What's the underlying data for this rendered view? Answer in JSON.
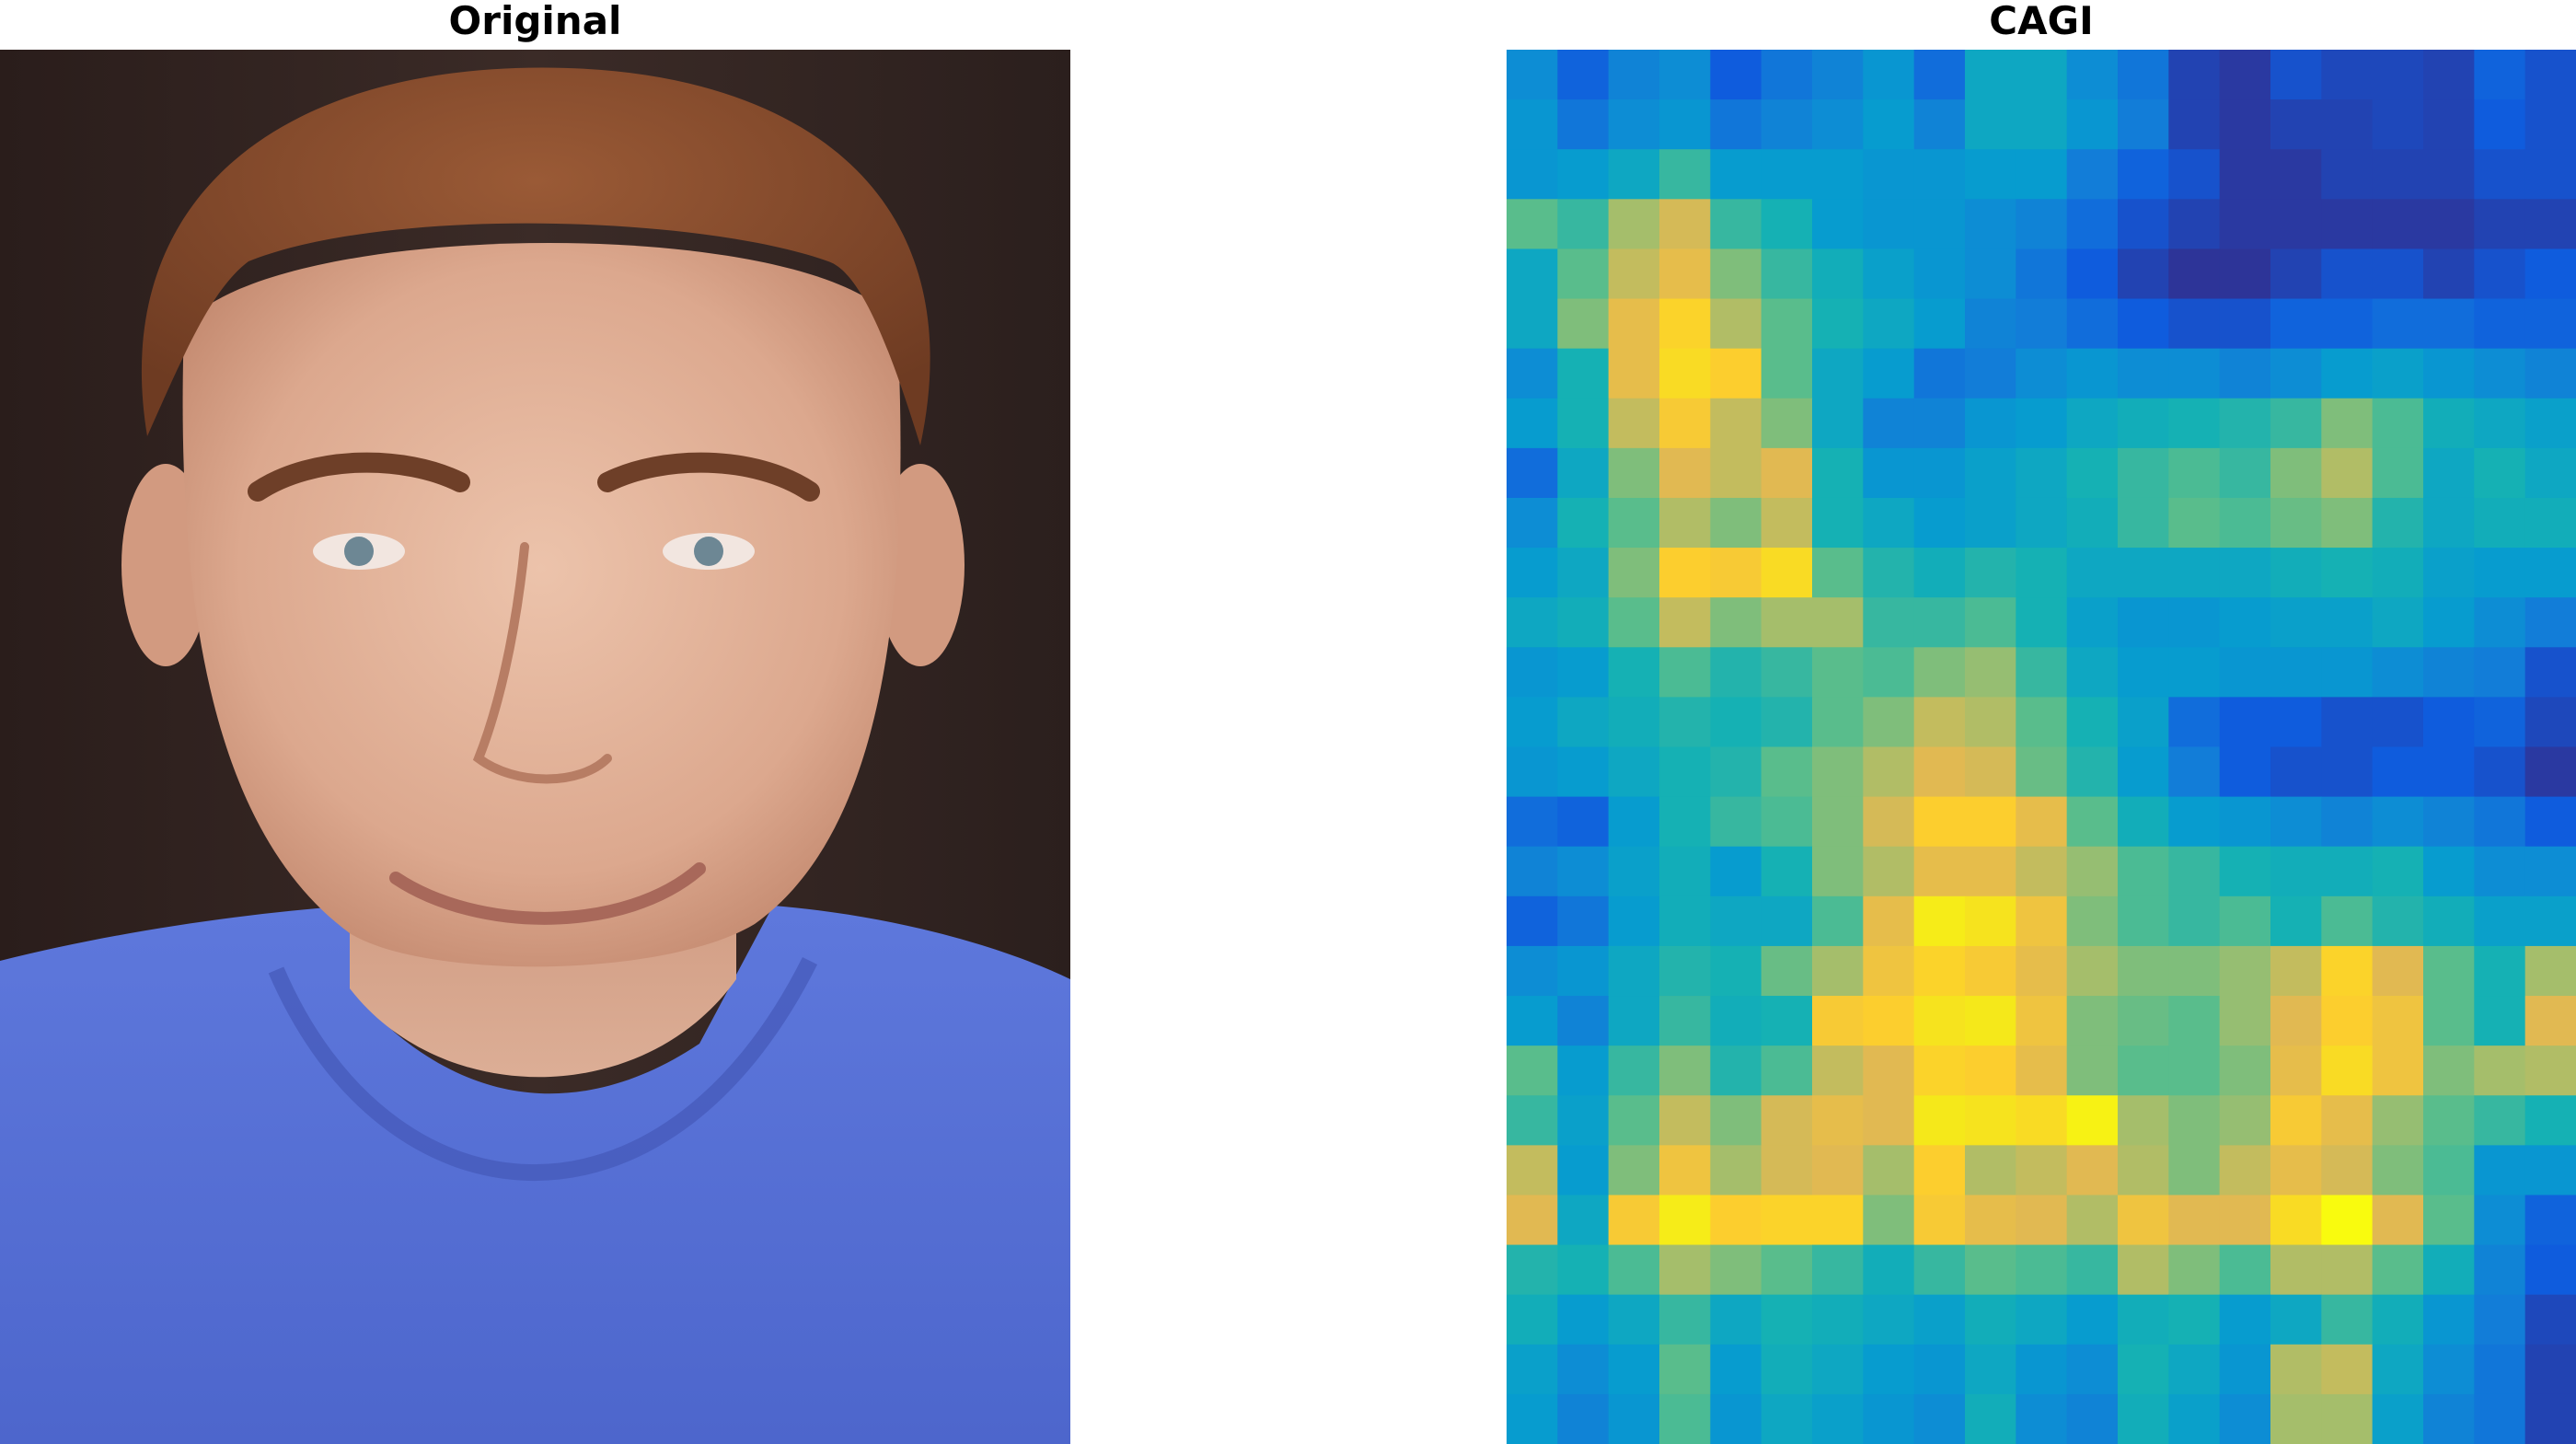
{
  "panels": {
    "left_title": "Original",
    "right_title": "CAGI"
  },
  "photo": {
    "subject": "portrait-photo",
    "colors": {
      "background": "#2f2220",
      "skin": "#e3b39a",
      "skin_shadow": "#c98d74",
      "hair": "#8a4d2c",
      "shirt": "#5a73d8",
      "shirt_shadow": "#4a5fc0"
    }
  },
  "heatmap": {
    "type": "heatmap",
    "colormap": "parula",
    "rows": 28,
    "cols": 21,
    "vmin": 0,
    "vmax": 1,
    "values": [
      [
        0.25,
        0.12,
        0.22,
        0.25,
        0.1,
        0.18,
        0.22,
        0.28,
        0.15,
        0.35,
        0.35,
        0.25,
        0.18,
        0.05,
        0.03,
        0.08,
        0.06,
        0.06,
        0.05,
        0.12,
        0.08
      ],
      [
        0.28,
        0.18,
        0.25,
        0.28,
        0.18,
        0.22,
        0.25,
        0.3,
        0.22,
        0.35,
        0.35,
        0.28,
        0.2,
        0.05,
        0.03,
        0.05,
        0.05,
        0.06,
        0.05,
        0.1,
        0.08
      ],
      [
        0.28,
        0.3,
        0.35,
        0.45,
        0.3,
        0.3,
        0.3,
        0.28,
        0.28,
        0.3,
        0.3,
        0.2,
        0.12,
        0.08,
        0.03,
        0.03,
        0.05,
        0.05,
        0.05,
        0.08,
        0.08
      ],
      [
        0.5,
        0.45,
        0.6,
        0.68,
        0.45,
        0.4,
        0.3,
        0.28,
        0.28,
        0.25,
        0.22,
        0.15,
        0.08,
        0.05,
        0.03,
        0.03,
        0.03,
        0.03,
        0.03,
        0.05,
        0.05
      ],
      [
        0.35,
        0.5,
        0.65,
        0.72,
        0.55,
        0.45,
        0.38,
        0.32,
        0.28,
        0.25,
        0.18,
        0.1,
        0.05,
        0.02,
        0.02,
        0.05,
        0.08,
        0.08,
        0.05,
        0.08,
        0.1
      ],
      [
        0.35,
        0.55,
        0.72,
        0.82,
        0.62,
        0.5,
        0.4,
        0.35,
        0.3,
        0.22,
        0.2,
        0.15,
        0.1,
        0.08,
        0.08,
        0.12,
        0.12,
        0.15,
        0.15,
        0.12,
        0.12
      ],
      [
        0.25,
        0.4,
        0.72,
        0.85,
        0.8,
        0.5,
        0.35,
        0.3,
        0.18,
        0.2,
        0.25,
        0.28,
        0.25,
        0.25,
        0.22,
        0.25,
        0.3,
        0.32,
        0.28,
        0.25,
        0.22
      ],
      [
        0.3,
        0.4,
        0.65,
        0.78,
        0.65,
        0.55,
        0.35,
        0.22,
        0.22,
        0.28,
        0.3,
        0.35,
        0.38,
        0.4,
        0.42,
        0.45,
        0.55,
        0.48,
        0.38,
        0.35,
        0.32
      ],
      [
        0.15,
        0.35,
        0.55,
        0.7,
        0.65,
        0.7,
        0.4,
        0.28,
        0.28,
        0.32,
        0.35,
        0.4,
        0.45,
        0.48,
        0.45,
        0.55,
        0.62,
        0.48,
        0.35,
        0.4,
        0.35
      ],
      [
        0.25,
        0.4,
        0.5,
        0.62,
        0.55,
        0.65,
        0.4,
        0.35,
        0.3,
        0.32,
        0.35,
        0.38,
        0.45,
        0.5,
        0.48,
        0.52,
        0.55,
        0.42,
        0.35,
        0.38,
        0.38
      ],
      [
        0.3,
        0.35,
        0.55,
        0.8,
        0.78,
        0.85,
        0.5,
        0.42,
        0.38,
        0.42,
        0.4,
        0.35,
        0.35,
        0.35,
        0.35,
        0.38,
        0.4,
        0.38,
        0.32,
        0.3,
        0.3
      ],
      [
        0.35,
        0.38,
        0.5,
        0.65,
        0.55,
        0.6,
        0.6,
        0.45,
        0.45,
        0.48,
        0.4,
        0.32,
        0.28,
        0.28,
        0.3,
        0.32,
        0.32,
        0.35,
        0.3,
        0.25,
        0.2
      ],
      [
        0.28,
        0.3,
        0.4,
        0.48,
        0.42,
        0.45,
        0.5,
        0.48,
        0.55,
        0.58,
        0.45,
        0.35,
        0.3,
        0.3,
        0.28,
        0.28,
        0.28,
        0.25,
        0.22,
        0.2,
        0.08
      ],
      [
        0.3,
        0.35,
        0.38,
        0.42,
        0.4,
        0.42,
        0.5,
        0.55,
        0.65,
        0.62,
        0.5,
        0.4,
        0.32,
        0.15,
        0.1,
        0.1,
        0.08,
        0.08,
        0.1,
        0.12,
        0.06
      ],
      [
        0.28,
        0.3,
        0.35,
        0.4,
        0.42,
        0.5,
        0.55,
        0.62,
        0.7,
        0.68,
        0.52,
        0.42,
        0.3,
        0.2,
        0.1,
        0.08,
        0.08,
        0.1,
        0.1,
        0.08,
        0.03
      ],
      [
        0.15,
        0.12,
        0.3,
        0.4,
        0.45,
        0.48,
        0.55,
        0.68,
        0.8,
        0.8,
        0.72,
        0.5,
        0.38,
        0.3,
        0.28,
        0.25,
        0.22,
        0.25,
        0.22,
        0.18,
        0.1
      ],
      [
        0.22,
        0.25,
        0.32,
        0.38,
        0.3,
        0.4,
        0.55,
        0.62,
        0.72,
        0.72,
        0.65,
        0.58,
        0.48,
        0.45,
        0.4,
        0.38,
        0.38,
        0.4,
        0.3,
        0.25,
        0.25
      ],
      [
        0.12,
        0.18,
        0.3,
        0.38,
        0.35,
        0.35,
        0.48,
        0.72,
        0.92,
        0.88,
        0.75,
        0.55,
        0.48,
        0.45,
        0.48,
        0.4,
        0.48,
        0.42,
        0.38,
        0.32,
        0.32
      ],
      [
        0.25,
        0.28,
        0.35,
        0.42,
        0.4,
        0.52,
        0.6,
        0.75,
        0.82,
        0.78,
        0.72,
        0.6,
        0.55,
        0.55,
        0.58,
        0.65,
        0.82,
        0.7,
        0.5,
        0.4,
        0.6
      ],
      [
        0.3,
        0.22,
        0.35,
        0.45,
        0.38,
        0.4,
        0.78,
        0.8,
        0.88,
        0.9,
        0.75,
        0.55,
        0.52,
        0.5,
        0.58,
        0.7,
        0.8,
        0.75,
        0.5,
        0.4,
        0.7
      ],
      [
        0.5,
        0.3,
        0.45,
        0.55,
        0.42,
        0.48,
        0.65,
        0.7,
        0.82,
        0.8,
        0.72,
        0.55,
        0.5,
        0.5,
        0.55,
        0.72,
        0.85,
        0.75,
        0.55,
        0.6,
        0.62
      ],
      [
        0.45,
        0.32,
        0.5,
        0.65,
        0.55,
        0.68,
        0.72,
        0.7,
        0.9,
        0.88,
        0.85,
        0.95,
        0.6,
        0.55,
        0.58,
        0.78,
        0.72,
        0.58,
        0.5,
        0.45,
        0.4
      ],
      [
        0.65,
        0.3,
        0.55,
        0.75,
        0.6,
        0.68,
        0.7,
        0.6,
        0.8,
        0.62,
        0.65,
        0.7,
        0.62,
        0.55,
        0.65,
        0.72,
        0.68,
        0.55,
        0.48,
        0.28,
        0.28
      ],
      [
        0.7,
        0.35,
        0.78,
        0.92,
        0.8,
        0.82,
        0.82,
        0.55,
        0.78,
        0.72,
        0.7,
        0.62,
        0.75,
        0.7,
        0.7,
        0.85,
        1.0,
        0.7,
        0.5,
        0.25,
        0.12
      ],
      [
        0.42,
        0.4,
        0.48,
        0.6,
        0.55,
        0.5,
        0.45,
        0.38,
        0.45,
        0.5,
        0.48,
        0.45,
        0.62,
        0.55,
        0.48,
        0.62,
        0.62,
        0.5,
        0.38,
        0.22,
        0.1
      ],
      [
        0.38,
        0.3,
        0.35,
        0.45,
        0.35,
        0.4,
        0.38,
        0.35,
        0.32,
        0.38,
        0.35,
        0.3,
        0.38,
        0.4,
        0.3,
        0.35,
        0.45,
        0.38,
        0.28,
        0.2,
        0.06
      ],
      [
        0.32,
        0.25,
        0.3,
        0.5,
        0.3,
        0.38,
        0.35,
        0.3,
        0.28,
        0.35,
        0.28,
        0.25,
        0.4,
        0.35,
        0.28,
        0.62,
        0.65,
        0.35,
        0.25,
        0.18,
        0.05
      ],
      [
        0.3,
        0.22,
        0.28,
        0.48,
        0.28,
        0.35,
        0.32,
        0.28,
        0.25,
        0.38,
        0.25,
        0.22,
        0.38,
        0.32,
        0.25,
        0.6,
        0.6,
        0.32,
        0.22,
        0.18,
        0.05
      ]
    ]
  }
}
